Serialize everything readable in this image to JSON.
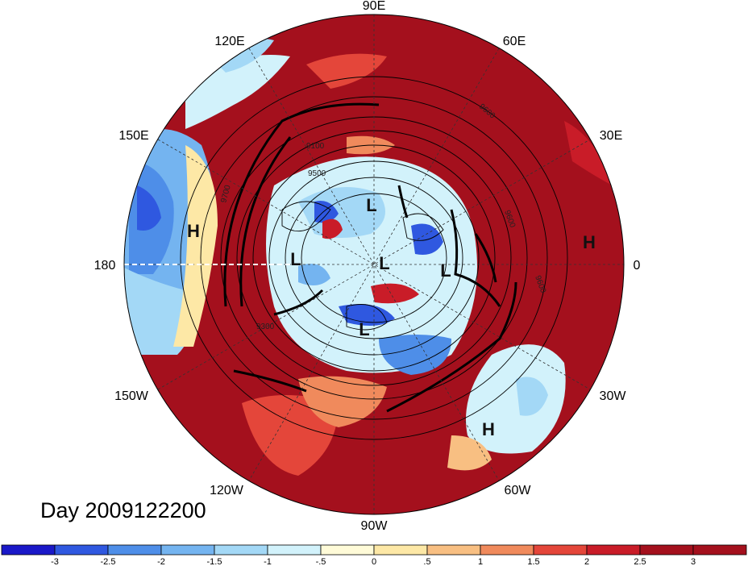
{
  "title": "Day 2009122200",
  "longitude_labels": {
    "lon_90E": "90E",
    "lon_120E": "120E",
    "lon_60E": "60E",
    "lon_150E": "150E",
    "lon_30E": "30E",
    "lon_180": "180",
    "lon_0": "0",
    "lon_150W": "150W",
    "lon_30W": "30W",
    "lon_120W": "120W",
    "lon_60W": "60W",
    "lon_90W": "90W"
  },
  "pressure_systems": [
    {
      "type": "H",
      "location": "North Pacific (near 180)"
    },
    {
      "type": "H",
      "location": "Europe (near 0)"
    },
    {
      "type": "H",
      "location": "North Atlantic (near 30W-60W)"
    },
    {
      "type": "L",
      "location": "Siberia"
    },
    {
      "type": "L",
      "location": "East Siberian Sea"
    },
    {
      "type": "L",
      "location": "Arctic Ocean"
    },
    {
      "type": "L",
      "location": "Barents Sea"
    },
    {
      "type": "L",
      "location": "Canadian Arctic"
    }
  ],
  "contour_labels": [
    "9700",
    "9600",
    "9500",
    "9300",
    "9100",
    "9600",
    "9600"
  ],
  "colorbar": {
    "ticks": [
      "-3",
      "-2.5",
      "-2",
      "-1.5",
      "-1",
      "-.5",
      "0",
      ".5",
      "1",
      "1.5",
      "2",
      "2.5",
      "3"
    ],
    "colors": [
      "#1a18c8",
      "#2f58e0",
      "#4e8ee8",
      "#74b4f0",
      "#a3d8f6",
      "#d2f2fb",
      "#fffbd8",
      "#fde8a6",
      "#f8bf82",
      "#f08a5c",
      "#e4463a",
      "#c91c28",
      "#a4101d"
    ]
  },
  "colors": {
    "hot": "#a4101d",
    "cold": "#1a18c8",
    "neutral": "#fffbd8"
  }
}
